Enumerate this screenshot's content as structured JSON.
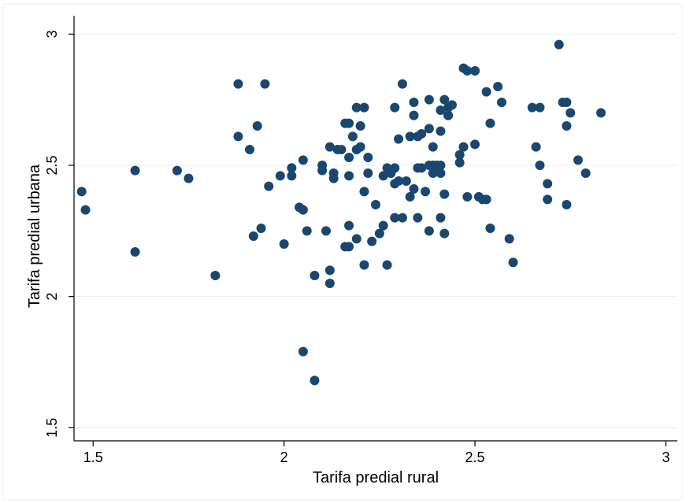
{
  "chart_data": {
    "type": "scatter",
    "xlabel": "Tarifa predial rural",
    "ylabel": "Tarifa predial urbana",
    "xlim": [
      1.45,
      3.03
    ],
    "ylim": [
      1.5,
      3.0
    ],
    "xticks": [
      "1.5",
      "2",
      "2.5",
      "3"
    ],
    "yticks": [
      "1.5",
      "2",
      "2.5",
      "3"
    ],
    "grid": "horizontal",
    "marker_color": "#1a476f",
    "points": [
      {
        "x": 1.47,
        "y": 2.4
      },
      {
        "x": 1.48,
        "y": 2.33
      },
      {
        "x": 1.61,
        "y": 2.48
      },
      {
        "x": 1.61,
        "y": 2.17
      },
      {
        "x": 1.72,
        "y": 2.48
      },
      {
        "x": 1.75,
        "y": 2.45
      },
      {
        "x": 1.82,
        "y": 2.08
      },
      {
        "x": 1.88,
        "y": 2.81
      },
      {
        "x": 1.88,
        "y": 2.61
      },
      {
        "x": 1.91,
        "y": 2.56
      },
      {
        "x": 1.92,
        "y": 2.23
      },
      {
        "x": 1.93,
        "y": 2.65
      },
      {
        "x": 1.94,
        "y": 2.26
      },
      {
        "x": 1.95,
        "y": 2.81
      },
      {
        "x": 1.96,
        "y": 2.42
      },
      {
        "x": 1.99,
        "y": 2.46
      },
      {
        "x": 2.0,
        "y": 2.2
      },
      {
        "x": 2.02,
        "y": 2.49
      },
      {
        "x": 2.02,
        "y": 2.46
      },
      {
        "x": 2.04,
        "y": 2.34
      },
      {
        "x": 2.05,
        "y": 2.33
      },
      {
        "x": 2.05,
        "y": 2.52
      },
      {
        "x": 2.06,
        "y": 2.25
      },
      {
        "x": 2.05,
        "y": 1.79
      },
      {
        "x": 2.08,
        "y": 1.68
      },
      {
        "x": 2.08,
        "y": 2.08
      },
      {
        "x": 2.1,
        "y": 2.5
      },
      {
        "x": 2.1,
        "y": 2.48
      },
      {
        "x": 2.11,
        "y": 2.25
      },
      {
        "x": 2.12,
        "y": 2.1
      },
      {
        "x": 2.12,
        "y": 2.05
      },
      {
        "x": 2.12,
        "y": 2.57
      },
      {
        "x": 2.13,
        "y": 2.47
      },
      {
        "x": 2.13,
        "y": 2.45
      },
      {
        "x": 2.14,
        "y": 2.56
      },
      {
        "x": 2.15,
        "y": 2.56
      },
      {
        "x": 2.16,
        "y": 2.19
      },
      {
        "x": 2.17,
        "y": 2.19
      },
      {
        "x": 2.16,
        "y": 2.66
      },
      {
        "x": 2.17,
        "y": 2.66
      },
      {
        "x": 2.17,
        "y": 2.53
      },
      {
        "x": 2.17,
        "y": 2.46
      },
      {
        "x": 2.17,
        "y": 2.27
      },
      {
        "x": 2.18,
        "y": 2.61
      },
      {
        "x": 2.19,
        "y": 2.56
      },
      {
        "x": 2.19,
        "y": 2.22
      },
      {
        "x": 2.19,
        "y": 2.72
      },
      {
        "x": 2.2,
        "y": 2.65
      },
      {
        "x": 2.2,
        "y": 2.57
      },
      {
        "x": 2.21,
        "y": 2.72
      },
      {
        "x": 2.21,
        "y": 2.12
      },
      {
        "x": 2.21,
        "y": 2.4
      },
      {
        "x": 2.22,
        "y": 2.47
      },
      {
        "x": 2.22,
        "y": 2.53
      },
      {
        "x": 2.23,
        "y": 2.21
      },
      {
        "x": 2.24,
        "y": 2.35
      },
      {
        "x": 2.25,
        "y": 2.24
      },
      {
        "x": 2.26,
        "y": 2.46
      },
      {
        "x": 2.26,
        "y": 2.27
      },
      {
        "x": 2.27,
        "y": 2.12
      },
      {
        "x": 2.27,
        "y": 2.49
      },
      {
        "x": 2.28,
        "y": 2.47
      },
      {
        "x": 2.29,
        "y": 2.49
      },
      {
        "x": 2.29,
        "y": 2.43
      },
      {
        "x": 2.29,
        "y": 2.72
      },
      {
        "x": 2.29,
        "y": 2.3
      },
      {
        "x": 2.3,
        "y": 2.6
      },
      {
        "x": 2.3,
        "y": 2.44
      },
      {
        "x": 2.31,
        "y": 2.3
      },
      {
        "x": 2.31,
        "y": 2.81
      },
      {
        "x": 2.32,
        "y": 2.44
      },
      {
        "x": 2.33,
        "y": 2.38
      },
      {
        "x": 2.33,
        "y": 2.61
      },
      {
        "x": 2.34,
        "y": 2.74
      },
      {
        "x": 2.34,
        "y": 2.69
      },
      {
        "x": 2.34,
        "y": 2.41
      },
      {
        "x": 2.35,
        "y": 2.49
      },
      {
        "x": 2.35,
        "y": 2.3
      },
      {
        "x": 2.35,
        "y": 2.61
      },
      {
        "x": 2.36,
        "y": 2.62
      },
      {
        "x": 2.36,
        "y": 2.49
      },
      {
        "x": 2.37,
        "y": 2.4
      },
      {
        "x": 2.38,
        "y": 2.5
      },
      {
        "x": 2.38,
        "y": 2.25
      },
      {
        "x": 2.38,
        "y": 2.64
      },
      {
        "x": 2.38,
        "y": 2.75
      },
      {
        "x": 2.39,
        "y": 2.57
      },
      {
        "x": 2.39,
        "y": 2.5
      },
      {
        "x": 2.39,
        "y": 2.47
      },
      {
        "x": 2.4,
        "y": 2.5
      },
      {
        "x": 2.4,
        "y": 2.48
      },
      {
        "x": 2.41,
        "y": 2.5
      },
      {
        "x": 2.41,
        "y": 2.47
      },
      {
        "x": 2.41,
        "y": 2.3
      },
      {
        "x": 2.41,
        "y": 2.71
      },
      {
        "x": 2.41,
        "y": 2.63
      },
      {
        "x": 2.42,
        "y": 2.75
      },
      {
        "x": 2.43,
        "y": 2.72
      },
      {
        "x": 2.43,
        "y": 2.69
      },
      {
        "x": 2.43,
        "y": 2.69
      },
      {
        "x": 2.42,
        "y": 2.39
      },
      {
        "x": 2.42,
        "y": 2.24
      },
      {
        "x": 2.44,
        "y": 2.73
      },
      {
        "x": 2.46,
        "y": 2.51
      },
      {
        "x": 2.46,
        "y": 2.54
      },
      {
        "x": 2.47,
        "y": 2.57
      },
      {
        "x": 2.47,
        "y": 2.87
      },
      {
        "x": 2.48,
        "y": 2.86
      },
      {
        "x": 2.48,
        "y": 2.38
      },
      {
        "x": 2.5,
        "y": 2.86
      },
      {
        "x": 2.5,
        "y": 2.58
      },
      {
        "x": 2.51,
        "y": 2.38
      },
      {
        "x": 2.52,
        "y": 2.37
      },
      {
        "x": 2.53,
        "y": 2.37
      },
      {
        "x": 2.53,
        "y": 2.78
      },
      {
        "x": 2.54,
        "y": 2.66
      },
      {
        "x": 2.54,
        "y": 2.26
      },
      {
        "x": 2.56,
        "y": 2.8
      },
      {
        "x": 2.57,
        "y": 2.74
      },
      {
        "x": 2.59,
        "y": 2.22
      },
      {
        "x": 2.6,
        "y": 2.13
      },
      {
        "x": 2.65,
        "y": 2.72
      },
      {
        "x": 2.66,
        "y": 2.57
      },
      {
        "x": 2.67,
        "y": 2.72
      },
      {
        "x": 2.67,
        "y": 2.5
      },
      {
        "x": 2.69,
        "y": 2.43
      },
      {
        "x": 2.69,
        "y": 2.37
      },
      {
        "x": 2.72,
        "y": 2.96
      },
      {
        "x": 2.73,
        "y": 2.74
      },
      {
        "x": 2.74,
        "y": 2.74
      },
      {
        "x": 2.74,
        "y": 2.65
      },
      {
        "x": 2.74,
        "y": 2.35
      },
      {
        "x": 2.75,
        "y": 2.7
      },
      {
        "x": 2.77,
        "y": 2.52
      },
      {
        "x": 2.79,
        "y": 2.47
      },
      {
        "x": 2.83,
        "y": 2.7
      }
    ]
  }
}
